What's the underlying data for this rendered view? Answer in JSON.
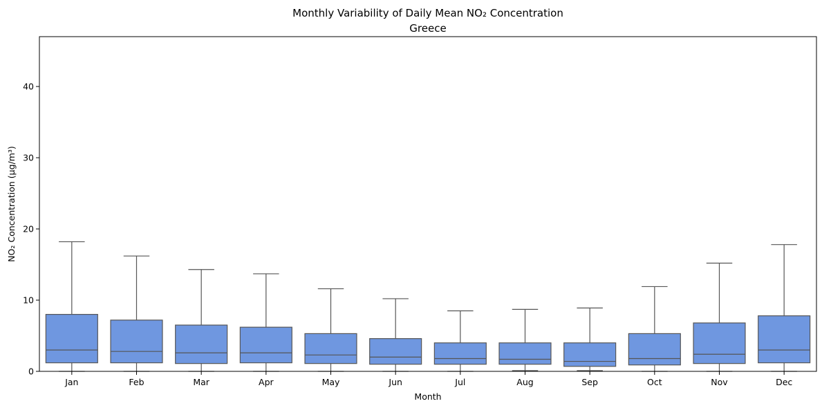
{
  "chart_data": {
    "type": "box",
    "title": "Monthly Variability of Daily Mean NO₂ Concentration",
    "subtitle": "Greece",
    "xlabel": "Month",
    "ylabel": "NO₂ Concentration (µg/m³)",
    "ylim": [
      0,
      47
    ],
    "yticks": [
      0,
      10,
      20,
      30,
      40
    ],
    "ytick_labels": [
      "0",
      "10",
      "20",
      "30",
      "40"
    ],
    "grid": false,
    "box_color": "#6f97e0",
    "line_color": "#555555",
    "categories": [
      "Jan",
      "Feb",
      "Mar",
      "Apr",
      "May",
      "Jun",
      "Jul",
      "Aug",
      "Sep",
      "Oct",
      "Nov",
      "Dec"
    ],
    "whisker_low": [
      0.0,
      0.0,
      0.0,
      0.0,
      0.0,
      0.0,
      0.0,
      0.1,
      0.1,
      0.0,
      0.0,
      0.0
    ],
    "q1": [
      1.2,
      1.2,
      1.1,
      1.2,
      1.1,
      1.0,
      1.0,
      1.0,
      0.7,
      0.9,
      1.1,
      1.2
    ],
    "median": [
      3.0,
      2.8,
      2.6,
      2.6,
      2.3,
      2.0,
      1.8,
      1.7,
      1.4,
      1.8,
      2.4,
      3.0
    ],
    "q3": [
      8.0,
      7.2,
      6.5,
      6.2,
      5.3,
      4.6,
      4.0,
      4.0,
      4.0,
      5.3,
      6.8,
      7.8
    ],
    "whisker_high": [
      18.2,
      16.2,
      14.3,
      13.7,
      11.6,
      10.2,
      8.5,
      8.7,
      8.9,
      11.9,
      15.2,
      17.8
    ]
  }
}
